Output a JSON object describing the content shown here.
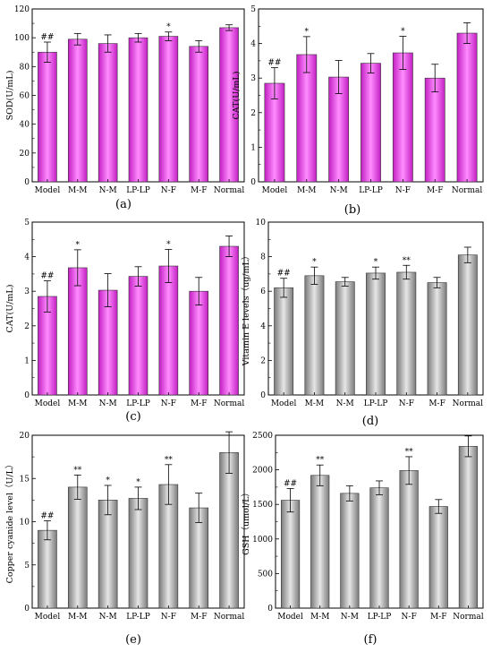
{
  "colors": {
    "magenta": "#ee44ee",
    "gray": "#a7a7a7",
    "axis": "#000000"
  },
  "chart_data": [
    {
      "id": "a",
      "type": "bar",
      "panel_label": "(a)",
      "categories": [
        "Model",
        "M-M",
        "N-M",
        "LP-LP",
        "N-F",
        "M-F",
        "Normal"
      ],
      "values": [
        90,
        99,
        96,
        100,
        101,
        94,
        107
      ],
      "errors": [
        7,
        4,
        6,
        3,
        3,
        4,
        2
      ],
      "annotations": [
        "##",
        "",
        "",
        "",
        "*",
        "",
        ""
      ],
      "ylabel": "SOD(U/mL)",
      "ylim": [
        0,
        120
      ],
      "yticks": [
        0,
        20,
        40,
        60,
        80,
        100,
        120
      ],
      "bar_fill": "magenta"
    },
    {
      "id": "b",
      "type": "bar",
      "panel_label": "(b)",
      "categories": [
        "Model",
        "M-M",
        "N-M",
        "LP-LP",
        "N-F",
        "M-F",
        "Normal"
      ],
      "values": [
        2.85,
        3.68,
        3.03,
        3.43,
        3.73,
        3.0,
        4.3
      ],
      "errors": [
        0.45,
        0.52,
        0.48,
        0.28,
        0.48,
        0.4,
        0.3
      ],
      "annotations": [
        "##",
        "*",
        "",
        "",
        "*",
        "",
        ""
      ],
      "ylabel": "CAT(U/mL)",
      "ylim": [
        0,
        5
      ],
      "yticks": [
        0,
        1,
        2,
        3,
        4,
        5
      ],
      "bar_fill": "magenta"
    },
    {
      "id": "c",
      "type": "bar",
      "panel_label": "(c)",
      "categories": [
        "Model",
        "M-M",
        "N-M",
        "LP-LP",
        "N-F",
        "M-F",
        "Normal"
      ],
      "values": [
        2.85,
        3.68,
        3.03,
        3.43,
        3.73,
        3.0,
        4.3
      ],
      "errors": [
        0.45,
        0.52,
        0.48,
        0.28,
        0.48,
        0.4,
        0.3
      ],
      "annotations": [
        "##",
        "*",
        "",
        "",
        "*",
        "",
        ""
      ],
      "ylabel": "CAT(U/mL)",
      "ylim": [
        0,
        5
      ],
      "yticks": [
        0,
        1,
        2,
        3,
        4,
        5
      ],
      "bar_fill": "magenta"
    },
    {
      "id": "d",
      "type": "bar",
      "panel_label": "(d)",
      "categories": [
        "Model",
        "M-M",
        "N-M",
        "LP-LP",
        "N-F",
        "M-F",
        "Normal"
      ],
      "values": [
        6.2,
        6.9,
        6.55,
        7.05,
        7.1,
        6.5,
        8.1
      ],
      "errors": [
        0.55,
        0.5,
        0.25,
        0.35,
        0.4,
        0.3,
        0.45
      ],
      "annotations": [
        "##",
        "*",
        "",
        "*",
        "**",
        "",
        ""
      ],
      "ylabel": "Vitamin E levels（ug/mL）",
      "ylim": [
        0,
        10
      ],
      "yticks": [
        0,
        2,
        4,
        6,
        8,
        10
      ],
      "bar_fill": "gray"
    },
    {
      "id": "e",
      "type": "bar",
      "panel_label": "(e)",
      "categories": [
        "Model",
        "M-M",
        "N-M",
        "LP-LP",
        "N-F",
        "M-F",
        "Normal"
      ],
      "values": [
        9,
        14,
        12.5,
        12.7,
        14.3,
        11.6,
        18
      ],
      "errors": [
        1.1,
        1.4,
        1.7,
        1.3,
        2.3,
        1.7,
        2.4
      ],
      "annotations": [
        "##",
        "**",
        "*",
        "*",
        "**",
        "",
        ""
      ],
      "ylabel": "Copper cyanide level（U/L）",
      "ylim": [
        0,
        20
      ],
      "yticks": [
        0,
        5,
        10,
        15,
        20
      ],
      "bar_fill": "gray"
    },
    {
      "id": "f",
      "type": "bar",
      "panel_label": "(f)",
      "categories": [
        "Model",
        "M-M",
        "N-M",
        "LP-LP",
        "N-F",
        "M-F",
        "Normal"
      ],
      "values": [
        1560,
        1920,
        1660,
        1740,
        1990,
        1470,
        2340
      ],
      "errors": [
        170,
        150,
        110,
        100,
        200,
        100,
        150
      ],
      "annotations": [
        "##",
        "**",
        "",
        "",
        "**",
        "",
        ""
      ],
      "ylabel": "GSH（umol/L）",
      "ylim": [
        0,
        2500
      ],
      "yticks": [
        0,
        500,
        1000,
        1500,
        2000,
        2500
      ],
      "bar_fill": "gray"
    }
  ]
}
